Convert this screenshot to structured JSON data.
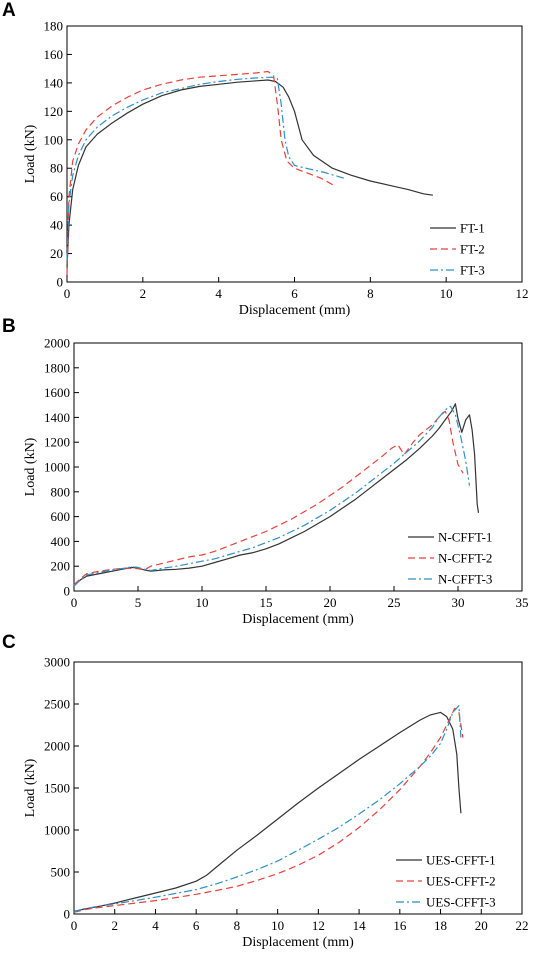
{
  "chart_data": [
    {
      "panel_label": "A",
      "type": "line",
      "xlabel": "Displacement (mm)",
      "ylabel": "Load (kN)",
      "xlim": [
        0,
        12
      ],
      "ylim": [
        0,
        180
      ],
      "xticks": [
        0,
        2,
        4,
        6,
        8,
        10,
        12
      ],
      "yticks": [
        0,
        20,
        40,
        60,
        80,
        100,
        120,
        140,
        160,
        180
      ],
      "grid": false,
      "legend_position": "bottom-right",
      "series": [
        {
          "name": "FT-1",
          "color": "#333333",
          "dash": "solid",
          "x": [
            0,
            0.05,
            0.15,
            0.3,
            0.5,
            0.8,
            1.2,
            1.6,
            2,
            2.5,
            3,
            3.5,
            4,
            4.5,
            5,
            5.3,
            5.5,
            5.7,
            5.85,
            6.0,
            6.2,
            6.5,
            7,
            7.5,
            8,
            8.5,
            9,
            9.4,
            9.65
          ],
          "y": [
            10,
            40,
            65,
            82,
            95,
            104,
            112,
            119,
            125,
            131,
            135,
            137.5,
            139,
            140.5,
            141.5,
            142,
            141,
            137,
            130,
            120,
            100,
            89,
            80,
            75,
            71,
            68,
            65,
            62,
            61
          ]
        },
        {
          "name": "FT-2",
          "color": "#e8413c",
          "dash": "dashed",
          "x": [
            0,
            0.05,
            0.15,
            0.3,
            0.5,
            0.8,
            1.2,
            1.6,
            2,
            2.5,
            3,
            3.5,
            4,
            4.5,
            5,
            5.3,
            5.45,
            5.55,
            5.65,
            5.8,
            6.0,
            6.3,
            6.7,
            7.1
          ],
          "y": [
            5,
            60,
            85,
            97,
            107,
            116,
            124,
            130,
            135,
            139,
            142,
            144,
            145,
            146,
            147,
            148,
            145,
            125,
            100,
            85,
            80,
            77,
            73,
            67
          ]
        },
        {
          "name": "FT-3",
          "color": "#2f8fc4",
          "dash": "dashdot",
          "x": [
            0,
            0.05,
            0.15,
            0.3,
            0.5,
            0.8,
            1.2,
            1.6,
            2,
            2.5,
            3,
            3.5,
            4,
            4.5,
            5,
            5.4,
            5.55,
            5.65,
            5.75,
            5.85,
            6.0,
            6.3,
            6.8,
            7.3
          ],
          "y": [
            15,
            55,
            75,
            89,
            100,
            109,
            117,
            123,
            128,
            133,
            136,
            139,
            141,
            142.5,
            143.5,
            144,
            143,
            125,
            100,
            88,
            82,
            80,
            77,
            73
          ]
        }
      ]
    },
    {
      "panel_label": "B",
      "type": "line",
      "xlabel": "Displacement (mm)",
      "ylabel": "Load (kN)",
      "xlim": [
        0,
        35
      ],
      "ylim": [
        0,
        2000
      ],
      "xticks": [
        0,
        5,
        10,
        15,
        20,
        25,
        30,
        35
      ],
      "yticks": [
        0,
        200,
        400,
        600,
        800,
        1000,
        1200,
        1400,
        1600,
        1800,
        2000
      ],
      "grid": false,
      "legend_position": "bottom-right",
      "series": [
        {
          "name": "N-CFFT-1",
          "color": "#333333",
          "dash": "solid",
          "x": [
            0,
            0.5,
            1,
            2,
            3,
            4,
            4.5,
            5,
            5.5,
            6,
            7,
            8,
            9,
            10,
            11,
            12,
            13,
            14,
            15,
            16,
            17,
            18,
            19,
            20,
            21,
            22,
            23,
            24,
            25,
            26,
            27,
            28,
            28.5,
            29,
            29.5,
            29.8,
            30.0,
            30.3,
            30.6,
            30.9,
            31.1,
            31.3,
            31.5,
            31.6
          ],
          "y": [
            40,
            90,
            120,
            140,
            160,
            180,
            190,
            185,
            170,
            160,
            170,
            175,
            185,
            200,
            230,
            260,
            290,
            310,
            340,
            380,
            430,
            480,
            540,
            600,
            670,
            740,
            820,
            900,
            980,
            1060,
            1150,
            1250,
            1310,
            1380,
            1450,
            1510,
            1390,
            1280,
            1380,
            1420,
            1300,
            1100,
            700,
            630
          ]
        },
        {
          "name": "N-CFFT-2",
          "color": "#e8413c",
          "dash": "dashed",
          "x": [
            0,
            0.5,
            1,
            2,
            3,
            4,
            5,
            5.5,
            6,
            7,
            8,
            9,
            10,
            11,
            12,
            13,
            14,
            15,
            16,
            17,
            18,
            19,
            20,
            21,
            22,
            23,
            24,
            24.8,
            25.3,
            25.8,
            26.5,
            27,
            27.5,
            28,
            28.5,
            29.0,
            29.3,
            29.6,
            30.0,
            30.4
          ],
          "y": [
            50,
            100,
            140,
            160,
            175,
            185,
            180,
            170,
            200,
            225,
            250,
            275,
            290,
            320,
            360,
            400,
            440,
            480,
            530,
            580,
            640,
            700,
            770,
            840,
            920,
            1000,
            1080,
            1150,
            1180,
            1100,
            1200,
            1260,
            1300,
            1340,
            1400,
            1450,
            1380,
            1200,
            1020,
            950
          ]
        },
        {
          "name": "N-CFFT-3",
          "color": "#2f8fc4",
          "dash": "dashdot",
          "x": [
            0,
            0.5,
            1,
            2,
            3,
            4,
            4.5,
            5,
            5.5,
            6,
            7,
            8,
            9,
            10,
            11,
            12,
            13,
            14,
            15,
            16,
            17,
            18,
            19,
            20,
            21,
            22,
            23,
            24,
            25,
            26,
            27,
            28,
            28.5,
            29.0,
            29.4,
            29.8,
            30.2,
            30.6,
            30.9
          ],
          "y": [
            40,
            90,
            130,
            150,
            170,
            185,
            195,
            190,
            175,
            165,
            185,
            200,
            220,
            240,
            260,
            290,
            320,
            350,
            390,
            430,
            480,
            530,
            590,
            650,
            720,
            790,
            870,
            950,
            1030,
            1120,
            1210,
            1320,
            1400,
            1460,
            1490,
            1420,
            1250,
            1050,
            850
          ]
        }
      ]
    },
    {
      "panel_label": "C",
      "type": "line",
      "xlabel": "Displacement (mm)",
      "ylabel": "Load (kN)",
      "xlim": [
        0,
        22
      ],
      "ylim": [
        0,
        3000
      ],
      "xticks": [
        0,
        2,
        4,
        6,
        8,
        10,
        12,
        14,
        16,
        18,
        20,
        22
      ],
      "yticks": [
        0,
        500,
        1000,
        1500,
        2000,
        2500,
        3000
      ],
      "grid": false,
      "legend_position": "bottom-right",
      "series": [
        {
          "name": "UES-CFFT-1",
          "color": "#333333",
          "dash": "solid",
          "x": [
            0,
            0.5,
            1,
            2,
            3,
            4,
            5,
            6,
            6.5,
            7,
            8,
            9,
            10,
            11,
            12,
            13,
            14,
            15,
            16,
            17,
            17.5,
            18,
            18.3,
            18.6,
            18.8,
            18.9,
            19.0
          ],
          "y": [
            30,
            60,
            80,
            130,
            190,
            250,
            310,
            390,
            460,
            560,
            760,
            940,
            1130,
            1320,
            1500,
            1670,
            1840,
            2000,
            2160,
            2310,
            2370,
            2400,
            2350,
            2200,
            1900,
            1500,
            1200
          ]
        },
        {
          "name": "UES-CFFT-2",
          "color": "#e8413c",
          "dash": "dashed",
          "x": [
            0,
            0.5,
            1,
            2,
            3,
            4,
            5,
            6,
            7,
            8,
            9,
            10,
            11,
            12,
            13,
            14,
            15,
            16,
            17,
            17.5,
            18,
            18.3,
            18.5,
            18.7,
            18.9,
            19.0,
            19.1
          ],
          "y": [
            20,
            50,
            70,
            100,
            130,
            160,
            195,
            235,
            280,
            330,
            400,
            480,
            580,
            700,
            850,
            1030,
            1240,
            1480,
            1760,
            1920,
            2100,
            2250,
            2350,
            2450,
            2400,
            2250,
            2100
          ]
        },
        {
          "name": "UES-CFFT-3",
          "color": "#2f8fc4",
          "dash": "dashdot",
          "x": [
            0,
            0.5,
            1,
            2,
            3,
            4,
            5,
            6,
            7,
            8,
            9,
            10,
            11,
            12,
            13,
            14,
            15,
            16,
            17,
            17.5,
            18,
            18.3,
            18.6,
            18.9,
            19.0
          ],
          "y": [
            25,
            60,
            85,
            120,
            160,
            200,
            245,
            290,
            360,
            440,
            530,
            630,
            760,
            890,
            1030,
            1190,
            1360,
            1550,
            1760,
            1880,
            2030,
            2200,
            2400,
            2480,
            2100
          ]
        }
      ]
    }
  ]
}
